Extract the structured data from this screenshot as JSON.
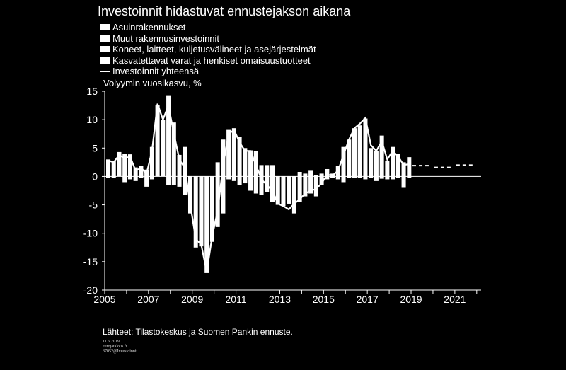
{
  "title": "Investoinnit hidastuvat ennustejakson aikana",
  "ylabel": "Volyymin vuosikasvu, %",
  "source": "Lähteet: Tilastokeskus ja Suomen Pankin ennuste.",
  "meta": [
    "11.6.2019",
    "eurojatalous.fi",
    "37052@Investoinnit"
  ],
  "chart_data": {
    "type": "bar",
    "stacked": true,
    "ylim": [
      -20,
      15
    ],
    "yticks": [
      15,
      10,
      5,
      0,
      -5,
      -10,
      -15,
      -20
    ],
    "xticks": [
      "2005",
      "2007",
      "2009",
      "2011",
      "2013",
      "2015",
      "2017",
      "2019",
      "2021"
    ],
    "series": [
      {
        "name": "Asuinrakennukset"
      },
      {
        "name": "Muut rakennusinvestoinnit"
      },
      {
        "name": "Koneet, laitteet, kuljetusvälineet ja asejärjestelmät"
      },
      {
        "name": "Kasvatettavat varat ja henkiset omaisuustuotteet"
      },
      {
        "name": "Investoinnit yhteensä"
      }
    ],
    "bars": [
      {
        "x": 2005.0,
        "top": 3.0,
        "bottom": -0.2
      },
      {
        "x": 2005.25,
        "top": 2.7,
        "bottom": -0.3
      },
      {
        "x": 2005.5,
        "top": 4.3,
        "bottom": 0.0
      },
      {
        "x": 2005.75,
        "top": 4.0,
        "bottom": -1.0
      },
      {
        "x": 2006.0,
        "top": 3.9,
        "bottom": -0.5
      },
      {
        "x": 2006.25,
        "top": 1.6,
        "bottom": -0.8
      },
      {
        "x": 2006.5,
        "top": 1.8,
        "bottom": -0.3
      },
      {
        "x": 2006.75,
        "top": 1.2,
        "bottom": -1.8
      },
      {
        "x": 2007.0,
        "top": 5.2,
        "bottom": -0.5
      },
      {
        "x": 2007.25,
        "top": 12.5,
        "bottom": 0.0
      },
      {
        "x": 2007.5,
        "top": 10.0,
        "bottom": 0.0
      },
      {
        "x": 2007.75,
        "top": 14.3,
        "bottom": -1.5
      },
      {
        "x": 2008.0,
        "top": 9.5,
        "bottom": -1.5
      },
      {
        "x": 2008.25,
        "top": 3.8,
        "bottom": -1.8
      },
      {
        "x": 2008.5,
        "top": 5.2,
        "bottom": -3.2
      },
      {
        "x": 2008.75,
        "top": 0.0,
        "bottom": -6.5
      },
      {
        "x": 2009.0,
        "top": 0.0,
        "bottom": -12.5
      },
      {
        "x": 2009.25,
        "top": 0.0,
        "bottom": -12.3
      },
      {
        "x": 2009.5,
        "top": 0.0,
        "bottom": -17.0
      },
      {
        "x": 2009.75,
        "top": 0.0,
        "bottom": -11.5
      },
      {
        "x": 2010.0,
        "top": 2.5,
        "bottom": -8.9
      },
      {
        "x": 2010.25,
        "top": 6.5,
        "bottom": -6.5
      },
      {
        "x": 2010.5,
        "top": 8.2,
        "bottom": -0.5
      },
      {
        "x": 2010.75,
        "top": 8.5,
        "bottom": -0.8
      },
      {
        "x": 2011.0,
        "top": 7.0,
        "bottom": -1.5
      },
      {
        "x": 2011.25,
        "top": 5.0,
        "bottom": -1.2
      },
      {
        "x": 2011.5,
        "top": 4.6,
        "bottom": -2.5
      },
      {
        "x": 2011.75,
        "top": 4.5,
        "bottom": -3.0
      },
      {
        "x": 2012.0,
        "top": 2.0,
        "bottom": -3.2
      },
      {
        "x": 2012.25,
        "top": 2.0,
        "bottom": -2.8
      },
      {
        "x": 2012.5,
        "top": 2.0,
        "bottom": -4.5
      },
      {
        "x": 2012.75,
        "top": 0.0,
        "bottom": -5.0
      },
      {
        "x": 2013.0,
        "top": 0.0,
        "bottom": -5.2
      },
      {
        "x": 2013.25,
        "top": 0.0,
        "bottom": -4.8
      },
      {
        "x": 2013.5,
        "top": 0.0,
        "bottom": -6.5
      },
      {
        "x": 2013.75,
        "top": 0.8,
        "bottom": -4.5
      },
      {
        "x": 2014.0,
        "top": 0.5,
        "bottom": -3.5
      },
      {
        "x": 2014.25,
        "top": 1.0,
        "bottom": -3.0
      },
      {
        "x": 2014.5,
        "top": 0.3,
        "bottom": -3.5
      },
      {
        "x": 2014.75,
        "top": 0.5,
        "bottom": -1.5
      },
      {
        "x": 2015.0,
        "top": 1.3,
        "bottom": -0.5
      },
      {
        "x": 2015.25,
        "top": 0.5,
        "bottom": -0.3
      },
      {
        "x": 2015.5,
        "top": 1.8,
        "bottom": -0.5
      },
      {
        "x": 2015.75,
        "top": 5.2,
        "bottom": -1.0
      },
      {
        "x": 2016.0,
        "top": 6.5,
        "bottom": -0.3
      },
      {
        "x": 2016.25,
        "top": 8.5,
        "bottom": -0.3
      },
      {
        "x": 2016.5,
        "top": 9.0,
        "bottom": -0.2
      },
      {
        "x": 2016.75,
        "top": 10.2,
        "bottom": -0.5
      },
      {
        "x": 2017.0,
        "top": 5.0,
        "bottom": -0.3
      },
      {
        "x": 2017.25,
        "top": 4.5,
        "bottom": -0.8
      },
      {
        "x": 2017.5,
        "top": 7.2,
        "bottom": -0.4
      },
      {
        "x": 2017.75,
        "top": 2.8,
        "bottom": -0.5
      },
      {
        "x": 2018.0,
        "top": 5.2,
        "bottom": -0.5
      },
      {
        "x": 2018.25,
        "top": 4.0,
        "bottom": -0.3
      },
      {
        "x": 2018.5,
        "top": 2.5,
        "bottom": -2.0
      },
      {
        "x": 2018.75,
        "top": 3.4,
        "bottom": -0.3
      }
    ],
    "total_line": [
      {
        "x": 2005.0,
        "y": 2.8
      },
      {
        "x": 2005.25,
        "y": 2.5
      },
      {
        "x": 2005.5,
        "y": 3.8
      },
      {
        "x": 2005.75,
        "y": 3.2
      },
      {
        "x": 2006.0,
        "y": 3.5
      },
      {
        "x": 2006.25,
        "y": 1.0
      },
      {
        "x": 2006.5,
        "y": 1.5
      },
      {
        "x": 2006.75,
        "y": 0.5
      },
      {
        "x": 2007.0,
        "y": 4.5
      },
      {
        "x": 2007.25,
        "y": 12.8
      },
      {
        "x": 2007.5,
        "y": 10.0
      },
      {
        "x": 2007.75,
        "y": 12.5
      },
      {
        "x": 2008.0,
        "y": 7.5
      },
      {
        "x": 2008.25,
        "y": 3.0
      },
      {
        "x": 2008.5,
        "y": 1.5
      },
      {
        "x": 2008.75,
        "y": -5.0
      },
      {
        "x": 2009.0,
        "y": -11.0
      },
      {
        "x": 2009.25,
        "y": -12.0
      },
      {
        "x": 2009.5,
        "y": -16.8
      },
      {
        "x": 2009.75,
        "y": -10.5
      },
      {
        "x": 2010.0,
        "y": -6.0
      },
      {
        "x": 2010.25,
        "y": 2.0
      },
      {
        "x": 2010.5,
        "y": 7.5
      },
      {
        "x": 2010.75,
        "y": 8.2
      },
      {
        "x": 2011.0,
        "y": 6.0
      },
      {
        "x": 2011.25,
        "y": 4.5
      },
      {
        "x": 2011.5,
        "y": 4.5
      },
      {
        "x": 2011.75,
        "y": 2.0
      },
      {
        "x": 2012.0,
        "y": -0.5
      },
      {
        "x": 2012.25,
        "y": -1.5
      },
      {
        "x": 2012.5,
        "y": -2.5
      },
      {
        "x": 2012.75,
        "y": -4.8
      },
      {
        "x": 2013.0,
        "y": -5.2
      },
      {
        "x": 2013.25,
        "y": -5.8
      },
      {
        "x": 2013.5,
        "y": -4.8
      },
      {
        "x": 2013.75,
        "y": -4.0
      },
      {
        "x": 2014.0,
        "y": -3.0
      },
      {
        "x": 2014.25,
        "y": -2.5
      },
      {
        "x": 2014.5,
        "y": -2.2
      },
      {
        "x": 2014.75,
        "y": -1.2
      },
      {
        "x": 2015.0,
        "y": 0.3
      },
      {
        "x": 2015.25,
        "y": 0.2
      },
      {
        "x": 2015.5,
        "y": 1.0
      },
      {
        "x": 2015.75,
        "y": 3.8
      },
      {
        "x": 2016.0,
        "y": 6.5
      },
      {
        "x": 2016.25,
        "y": 8.5
      },
      {
        "x": 2016.5,
        "y": 9.3
      },
      {
        "x": 2016.75,
        "y": 10.3
      },
      {
        "x": 2017.0,
        "y": 5.5
      },
      {
        "x": 2017.25,
        "y": 4.5
      },
      {
        "x": 2017.5,
        "y": 6.2
      },
      {
        "x": 2017.75,
        "y": 3.0
      },
      {
        "x": 2018.0,
        "y": 4.5
      },
      {
        "x": 2018.25,
        "y": 3.5
      },
      {
        "x": 2018.5,
        "y": 2.0
      },
      {
        "x": 2018.75,
        "y": 2.2
      }
    ],
    "forecast": [
      {
        "year": 2019,
        "value": 1.9
      },
      {
        "year": 2020,
        "value": 1.6
      },
      {
        "year": 2021,
        "value": 2.0
      }
    ]
  }
}
